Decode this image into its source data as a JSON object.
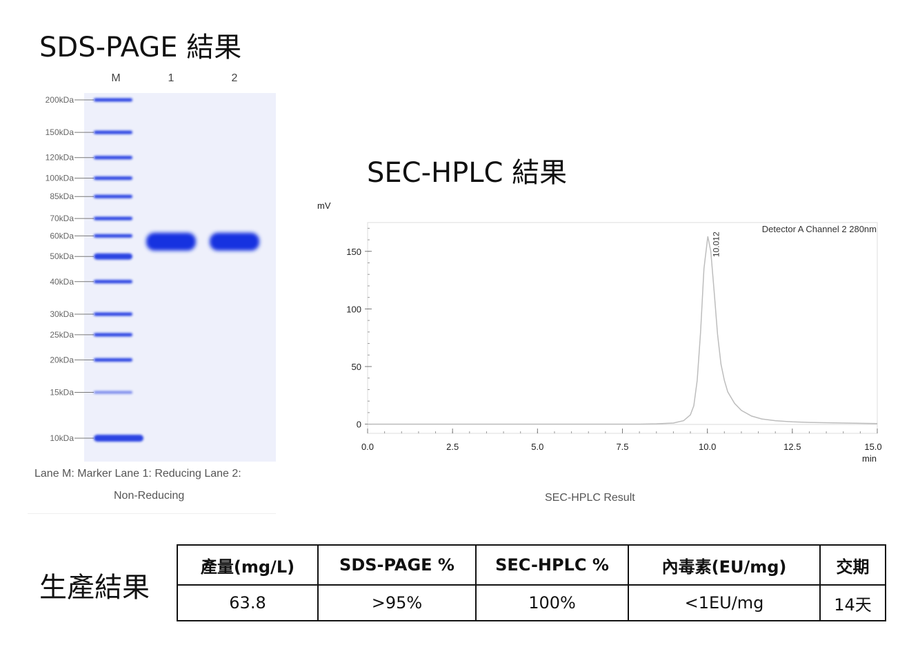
{
  "headings": {
    "sds_page": "SDS-PAGE 結果",
    "sec_hplc": "SEC-HPLC 結果",
    "production": "生產結果"
  },
  "gel": {
    "lane_labels": [
      "M",
      "1",
      "2"
    ],
    "markers": [
      "200kDa",
      "150kDa",
      "120kDa",
      "100kDa",
      "85kDa",
      "70kDa",
      "60kDa",
      "50kDa",
      "40kDa",
      "30kDa",
      "25kDa",
      "20kDa",
      "15kDa",
      "10kDa"
    ],
    "marker_kda": [
      200,
      150,
      120,
      100,
      85,
      70,
      60,
      50,
      40,
      30,
      25,
      20,
      15,
      10
    ],
    "band_kda": [
      57,
      57
    ],
    "caption_line1": "Lane M: Marker Lane 1: Reducing Lane 2:",
    "caption_line2": "Non-Reducing",
    "colors": {
      "gel_bg": "#eef0fb",
      "band": "#1533e0"
    }
  },
  "chart_data": {
    "type": "line",
    "ylabel": "mV",
    "xlabel": "min",
    "xlim": [
      0,
      15
    ],
    "ylim": [
      -8,
      175
    ],
    "x_ticks": [
      "0.0",
      "2.5",
      "5.0",
      "7.5",
      "10.0",
      "12.5",
      "15.0"
    ],
    "x_tick_values": [
      0,
      2.5,
      5,
      7.5,
      10,
      12.5,
      15
    ],
    "y_ticks": [
      "0",
      "50",
      "100",
      "150"
    ],
    "y_tick_values": [
      0,
      50,
      100,
      150
    ],
    "series": [
      {
        "name": "Detector A Channel 2 280nm",
        "x": [
          0,
          8.0,
          8.5,
          9.0,
          9.3,
          9.5,
          9.6,
          9.7,
          9.8,
          9.9,
          10.0,
          10.012,
          10.1,
          10.2,
          10.3,
          10.4,
          10.5,
          10.6,
          10.8,
          11.0,
          11.3,
          11.6,
          12.0,
          12.5,
          13.0,
          14.0,
          15.0
        ],
        "y": [
          0,
          0,
          0.3,
          1,
          3,
          8,
          16,
          38,
          80,
          135,
          160,
          163,
          150,
          115,
          78,
          52,
          38,
          28,
          18,
          12,
          7,
          4.5,
          3,
          2,
          1.5,
          1,
          0.5
        ],
        "color": "#bdbdbd"
      }
    ],
    "annotations": [
      {
        "text": "10.012",
        "x": 10.012,
        "y": 163
      }
    ],
    "grid": false,
    "legend": "top-right",
    "caption": "SEC-HPLC Result"
  },
  "table": {
    "headers": [
      "產量(mg/L)",
      "SDS-PAGE %",
      "SEC-HPLC %",
      "內毒素(EU/mg)",
      "交期"
    ],
    "values": [
      "63.8",
      ">95%",
      "100%",
      "<1EU/mg",
      "14天"
    ]
  }
}
